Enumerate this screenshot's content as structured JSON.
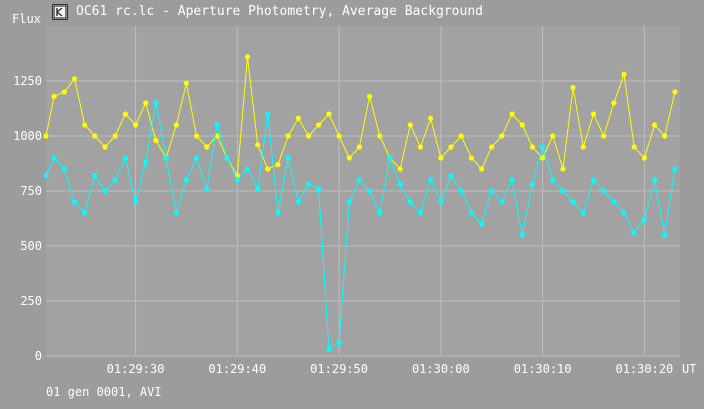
{
  "window": {
    "title": "OC61 rc.lc - Aperture Photometry, Average Background",
    "icon": "app-icon"
  },
  "status_text": "01 gen 0001, AVI",
  "colors": {
    "background": "#9c9c9c",
    "plot_background": "#a2a2a2",
    "grid": "#bdbdbd",
    "text": "#ffffff",
    "series_yellow": "#ffff00",
    "series_cyan": "#00ffff"
  },
  "chart_data": {
    "type": "line",
    "title": "OC61 rc.lc - Aperture Photometry, Average Background",
    "ylabel": "Flux",
    "xlabel": "UT",
    "ylim": [
      0,
      1500
    ],
    "xlim": [
      "01:29:21.2",
      "01:30:23.5"
    ],
    "grid": true,
    "yticks": [
      0,
      250,
      500,
      750,
      1000,
      1250
    ],
    "ytick_labels": [
      "0",
      "250",
      "500",
      "750",
      "1000",
      "1250"
    ],
    "xticks": [
      "01:29:30",
      "01:29:40",
      "01:29:50",
      "01:30:00",
      "01:30:10",
      "01:30:20"
    ],
    "series": [
      {
        "color": "#ffff00",
        "x": [
          "01:29:21.2",
          "01:29:22.0",
          "01:29:23.0",
          "01:29:24.0",
          "01:29:25.0",
          "01:29:26.0",
          "01:29:27.0",
          "01:29:28.0",
          "01:29:29.0",
          "01:29:30.0",
          "01:29:31.0",
          "01:29:32.0",
          "01:29:33.0",
          "01:29:34.0",
          "01:29:35.0",
          "01:29:36.0",
          "01:29:37.0",
          "01:29:38.0",
          "01:29:39.0",
          "01:29:40.0",
          "01:29:41.0",
          "01:29:42.0",
          "01:29:43.0",
          "01:29:44.0",
          "01:29:45.0",
          "01:29:46.0",
          "01:29:47.0",
          "01:29:48.0",
          "01:29:49.0",
          "01:29:50.0",
          "01:29:51.0",
          "01:29:52.0",
          "01:29:53.0",
          "01:29:54.0",
          "01:29:55.0",
          "01:29:56.0",
          "01:29:57.0",
          "01:29:58.0",
          "01:29:59.0",
          "01:30:00.0",
          "01:30:01.0",
          "01:30:02.0",
          "01:30:03.0",
          "01:30:04.0",
          "01:30:05.0",
          "01:30:06.0",
          "01:30:07.0",
          "01:30:08.0",
          "01:30:09.0",
          "01:30:10.0",
          "01:30:11.0",
          "01:30:12.0",
          "01:30:13.0",
          "01:30:14.0",
          "01:30:15.0",
          "01:30:16.0",
          "01:30:17.0",
          "01:30:18.0",
          "01:30:19.0",
          "01:30:20.0",
          "01:30:21.0",
          "01:30:22.0",
          "01:30:23.0"
        ],
        "y": [
          1000,
          1180,
          1200,
          1260,
          1050,
          1000,
          950,
          1000,
          1100,
          1050,
          1150,
          980,
          900,
          1050,
          1240,
          1000,
          950,
          1000,
          900,
          820,
          1360,
          960,
          850,
          870,
          1000,
          1080,
          1000,
          1050,
          1100,
          1000,
          900,
          950,
          1180,
          1000,
          900,
          850,
          1050,
          950,
          1080,
          900,
          950,
          1000,
          900,
          850,
          950,
          1000,
          1100,
          1050,
          950,
          900,
          1000,
          850,
          1220,
          950,
          1100,
          1000,
          1150,
          1280,
          950,
          900,
          1050,
          1000,
          1200
        ]
      },
      {
        "color": "#00ffff",
        "x": [
          "01:29:21.2",
          "01:29:22.0",
          "01:29:23.0",
          "01:29:24.0",
          "01:29:25.0",
          "01:29:26.0",
          "01:29:27.0",
          "01:29:28.0",
          "01:29:29.0",
          "01:29:30.0",
          "01:29:31.0",
          "01:29:32.0",
          "01:29:33.0",
          "01:29:34.0",
          "01:29:35.0",
          "01:29:36.0",
          "01:29:37.0",
          "01:29:38.0",
          "01:29:39.0",
          "01:29:40.0",
          "01:29:41.0",
          "01:29:42.0",
          "01:29:43.0",
          "01:29:44.0",
          "01:29:45.0",
          "01:29:46.0",
          "01:29:47.0",
          "01:29:48.0",
          "01:29:49.0",
          "01:29:50.0",
          "01:29:51.0",
          "01:29:52.0",
          "01:29:53.0",
          "01:29:54.0",
          "01:29:55.0",
          "01:29:56.0",
          "01:29:57.0",
          "01:29:58.0",
          "01:29:59.0",
          "01:30:00.0",
          "01:30:01.0",
          "01:30:02.0",
          "01:30:03.0",
          "01:30:04.0",
          "01:30:05.0",
          "01:30:06.0",
          "01:30:07.0",
          "01:30:08.0",
          "01:30:09.0",
          "01:30:10.0",
          "01:30:11.0",
          "01:30:12.0",
          "01:30:13.0",
          "01:30:14.0",
          "01:30:15.0",
          "01:30:16.0",
          "01:30:17.0",
          "01:30:18.0",
          "01:30:19.0",
          "01:30:20.0",
          "01:30:21.0",
          "01:30:22.0",
          "01:30:23.0"
        ],
        "y": [
          820,
          900,
          850,
          700,
          650,
          820,
          750,
          800,
          900,
          700,
          880,
          1150,
          900,
          650,
          800,
          900,
          760,
          1050,
          900,
          800,
          850,
          760,
          1100,
          650,
          900,
          700,
          780,
          760,
          30,
          60,
          700,
          800,
          750,
          650,
          900,
          780,
          700,
          650,
          800,
          700,
          820,
          750,
          650,
          600,
          750,
          700,
          800,
          550,
          780,
          950,
          800,
          750,
          700,
          650,
          800,
          750,
          700,
          650,
          560,
          620,
          800,
          550,
          850
        ]
      }
    ]
  }
}
